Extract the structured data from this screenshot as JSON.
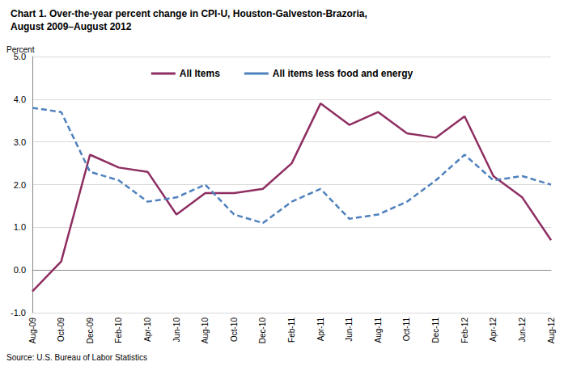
{
  "chart_data": {
    "type": "line",
    "title": "Chart 1. Over-the-year percent change in CPI-U, Houston-Galveston-Brazoria,\nAugust 2009–August 2012",
    "y_label": "Percent",
    "source": "Source: U.S. Bureau of Labor Statistics",
    "categories": [
      "Aug-09",
      "Oct-09",
      "Dec-09",
      "Feb-10",
      "Apr-10",
      "Jun-10",
      "Aug-10",
      "Oct-10",
      "Dec-10",
      "Feb-11",
      "Apr-11",
      "Jun-11",
      "Aug-11",
      "Oct-11",
      "Dec-11",
      "Feb-12",
      "Apr-12",
      "Jun-12",
      "Aug-12"
    ],
    "series": [
      {
        "name": "All Items",
        "color": "#8e2e62",
        "line_style": "solid",
        "marker": "none",
        "values": [
          -0.5,
          0.2,
          2.7,
          2.4,
          2.3,
          1.3,
          1.8,
          1.8,
          1.9,
          2.5,
          3.9,
          3.4,
          3.7,
          3.2,
          3.1,
          3.6,
          2.2,
          1.7,
          0.7
        ]
      },
      {
        "name": "All items less food and energy",
        "color": "#4f81bd",
        "line_style": "dashed",
        "marker": "none",
        "values": [
          3.8,
          3.7,
          2.3,
          2.1,
          1.6,
          1.7,
          2.0,
          1.3,
          1.1,
          1.6,
          1.9,
          1.2,
          1.3,
          1.6,
          2.1,
          2.7,
          2.1,
          2.2,
          2.0
        ]
      }
    ],
    "ylim": [
      -1,
      5
    ],
    "yticks": [
      {
        "value": -1,
        "label": "-1.0"
      },
      {
        "value": 0,
        "label": "0.0"
      },
      {
        "value": 1,
        "label": "1.0"
      },
      {
        "value": 2,
        "label": "2.0"
      },
      {
        "value": 3,
        "label": "3.0"
      },
      {
        "value": 4,
        "label": "4.0"
      },
      {
        "value": 5,
        "label": "5.0"
      }
    ],
    "grid": true,
    "legend": "top"
  }
}
